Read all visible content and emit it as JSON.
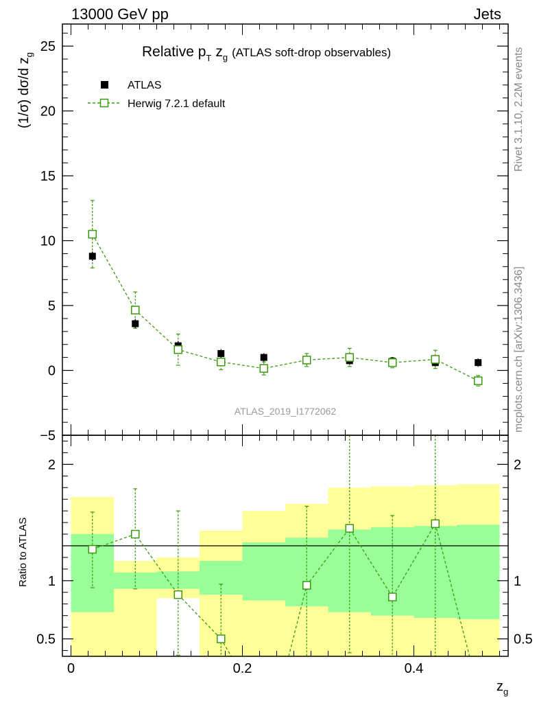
{
  "header": {
    "left": "13000 GeV pp",
    "right": "Jets"
  },
  "side_text": {
    "rivet": "Rivet 3.1.10,  2.2M events",
    "mcplots": "mcplots.cern.ch [arXiv:1306.3436]"
  },
  "chart_data": {
    "type": "scatter",
    "title": {
      "main": "Relative p",
      "sub_T": "T",
      "z": "z",
      "sub_g": "g",
      "rest": "(ATLAS soft-drop observables)"
    },
    "analysis_label": "ATLAS_2019_I1772062",
    "xlabel": {
      "main": "z",
      "sub": "g"
    },
    "ylabel": {
      "main": "(1/σ) dσ/d z",
      "sub": "g"
    },
    "ratio_ylabel": "Ratio to ATLAS",
    "xlim": [
      -0.01,
      0.51
    ],
    "ylim": [
      -5,
      26.7
    ],
    "ratio_ylim": [
      0.35,
      2.25
    ],
    "x_ticks": [
      0,
      0.2,
      0.4
    ],
    "x_tick_labels": [
      "0",
      "0.2",
      "0.4"
    ],
    "y_ticks": [
      -5,
      0,
      5,
      10,
      15,
      20,
      25
    ],
    "y_tick_labels": [
      "−5",
      "0",
      "5",
      "10",
      "15",
      "20",
      "25"
    ],
    "ratio_ticks": [
      0.5,
      1,
      2
    ],
    "ratio_tick_labels": [
      "0.5",
      "1",
      "2"
    ],
    "legend": {
      "data_label": "ATLAS",
      "mc_label": "Herwig 7.2.1 default",
      "position": "top-left"
    },
    "colors": {
      "data": "#000000",
      "mc": "#3a9a10",
      "band_inner": "#99ff99",
      "band_outer": "#ffff99"
    },
    "bins": [
      0,
      0.05,
      0.1,
      0.15,
      0.2,
      0.25,
      0.3,
      0.35,
      0.4,
      0.45,
      0.5
    ],
    "series": [
      {
        "name": "ATLAS",
        "x": [
          0.025,
          0.075,
          0.125,
          0.175,
          0.225,
          0.275,
          0.325,
          0.375,
          0.425,
          0.475
        ],
        "y": [
          8.8,
          3.6,
          1.9,
          1.3,
          1.0,
          0.8,
          0.75,
          0.7,
          0.6,
          0.6
        ],
        "yerr": [
          0.1,
          0.1,
          0.1,
          0.08,
          0.06,
          0.06,
          0.06,
          0.06,
          0.06,
          0.06
        ]
      },
      {
        "name": "Herwig 7.2.1 default",
        "x": [
          0.025,
          0.075,
          0.125,
          0.175,
          0.225,
          0.275,
          0.325,
          0.375,
          0.425,
          0.475
        ],
        "y": [
          10.5,
          4.65,
          1.6,
          0.65,
          0.15,
          0.8,
          1.0,
          0.6,
          0.85,
          -0.8
        ],
        "yerr_up": [
          2.6,
          1.4,
          1.2,
          0.6,
          0.5,
          0.5,
          0.7,
          0.4,
          0.7,
          0.4
        ],
        "yerr_down": [
          2.6,
          1.4,
          1.2,
          0.6,
          0.5,
          0.5,
          0.7,
          0.4,
          0.7,
          0.4
        ]
      }
    ],
    "ratio": {
      "x": [
        0.025,
        0.075,
        0.125,
        0.175,
        0.275,
        0.325,
        0.375,
        0.425
      ],
      "y": [
        1.27,
        1.4,
        0.88,
        0.5,
        0.96,
        1.45,
        0.86,
        1.49
      ],
      "err_up": [
        0.32,
        0.39,
        0.72,
        0.47,
        0.68,
        0.8,
        0.7,
        0.9
      ],
      "err_down": [
        0.33,
        0.47,
        0.52,
        0.15,
        0.61,
        1.07,
        0.51,
        1.14
      ],
      "offscale_segments": [
        {
          "from_x": 0.175,
          "from_y": 0.5,
          "to_x": 0.187,
          "to_y": 0.35
        },
        {
          "from_x": 0.254,
          "from_y": 0.35,
          "to_x": 0.275,
          "to_y": 0.96
        },
        {
          "from_x": 0.425,
          "from_y": 1.49,
          "to_x": 0.465,
          "to_y": 0.35
        }
      ],
      "band_inner": [
        [
          0.73,
          1.4
        ],
        [
          0.93,
          1.07
        ],
        [
          0.93,
          1.08
        ],
        [
          0.88,
          1.17
        ],
        [
          0.83,
          1.33
        ],
        [
          0.78,
          1.37
        ],
        [
          0.73,
          1.44
        ],
        [
          0.7,
          1.46
        ],
        [
          0.68,
          1.47
        ],
        [
          0.67,
          1.48
        ]
      ],
      "band_outer": [
        [
          0.35,
          1.72
        ],
        [
          0.35,
          1.17
        ],
        [
          0.85,
          1.2
        ],
        [
          0.35,
          1.43
        ],
        [
          0.35,
          1.6
        ],
        [
          0.35,
          1.66
        ],
        [
          0.35,
          1.8
        ],
        [
          0.35,
          1.81
        ],
        [
          0.35,
          1.82
        ],
        [
          0.35,
          1.83
        ]
      ]
    }
  }
}
